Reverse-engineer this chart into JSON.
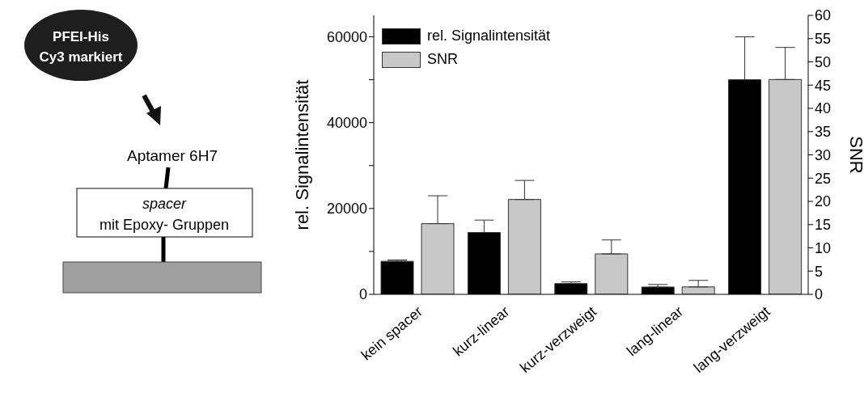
{
  "chart_data": {
    "type": "bar",
    "ylabel": "rel. Signalintensität",
    "y2label": "SNR",
    "categories": [
      "kein spacer",
      "kurz-linear",
      "kurz-verzweigt",
      "lang-linear",
      "lang-verzweigt"
    ],
    "series": [
      {
        "name": "rel. Signalintensität",
        "color": "#000000",
        "values": [
          7700,
          14400,
          2500,
          1700,
          50000
        ],
        "errors": [
          [
            7700,
            8000
          ],
          [
            14400,
            17300
          ],
          [
            2500,
            2900
          ],
          [
            1700,
            2300
          ],
          [
            50000,
            60000
          ]
        ]
      },
      {
        "name": "SNR",
        "color": "#c8c8c8",
        "axis": "y2",
        "values": [
          15.2,
          20.4,
          8.7,
          1.6,
          46.2
        ],
        "errors": [
          [
            15.2,
            21.2
          ],
          [
            20.4,
            24.5
          ],
          [
            8.7,
            11.7
          ],
          [
            1.6,
            3.0
          ],
          [
            46.2,
            53.1
          ]
        ]
      }
    ],
    "ylim": [
      0,
      65000
    ],
    "yticks": [
      0,
      {
        "value": 10000,
        "label": null
      },
      20000,
      {
        "value": 30000,
        "label": null
      },
      40000,
      {
        "value": 50000,
        "label": null
      },
      60000
    ],
    "y2lim": [
      0,
      60
    ],
    "y2ticks": [
      0,
      5,
      10,
      15,
      20,
      25,
      30,
      35,
      40,
      45,
      50,
      55,
      60
    ],
    "grid": false,
    "legend": "top left",
    "annotations": [
      "PFEI-His",
      "Cy3 markiert",
      "Aptamer 6H7",
      "spacer",
      "mit Epoxy- Gruppen"
    ]
  }
}
